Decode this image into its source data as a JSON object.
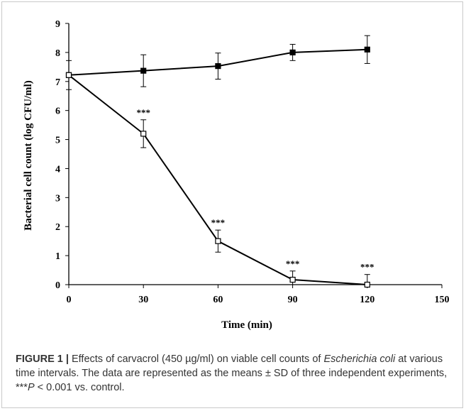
{
  "chart_data": {
    "type": "line",
    "title": "",
    "xlabel": "Time (min)",
    "ylabel": "Bacterial cell count (log CFU/ml)",
    "xlim": [
      0,
      150
    ],
    "ylim": [
      0,
      9
    ],
    "x_ticks": [
      "0",
      "30",
      "60",
      "90",
      "120",
      "150"
    ],
    "y_ticks": [
      "0",
      "1",
      "2",
      "3",
      "4",
      "5",
      "6",
      "7",
      "8",
      "9"
    ],
    "grid": false,
    "legend": "none",
    "series": [
      {
        "marker": "filled-square",
        "x": [
          0,
          30,
          60,
          90,
          120
        ],
        "y": [
          7.22,
          7.37,
          7.53,
          8.0,
          8.1
        ],
        "error": [
          0.5,
          0.55,
          0.45,
          0.28,
          0.48
        ]
      },
      {
        "marker": "open-square",
        "x": [
          0,
          30,
          60,
          90,
          120
        ],
        "y": [
          7.22,
          5.2,
          1.5,
          0.17,
          0.0
        ],
        "error": [
          0.0,
          0.48,
          0.38,
          0.3,
          0.35
        ],
        "annotations": [
          "",
          "***",
          "***",
          "***",
          "***"
        ]
      }
    ]
  },
  "caption": {
    "label": "FIGURE 1",
    "separator": "|",
    "part1": " Effects of carvacrol (450 µg/ml) on viable cell counts of ",
    "organism": "Escherichia coli",
    "part2": " at various time intervals. The data are represented as the means ± SD of three independent experiments, ***",
    "p_symbol": "P",
    "part3": " < 0.001 vs. control."
  }
}
